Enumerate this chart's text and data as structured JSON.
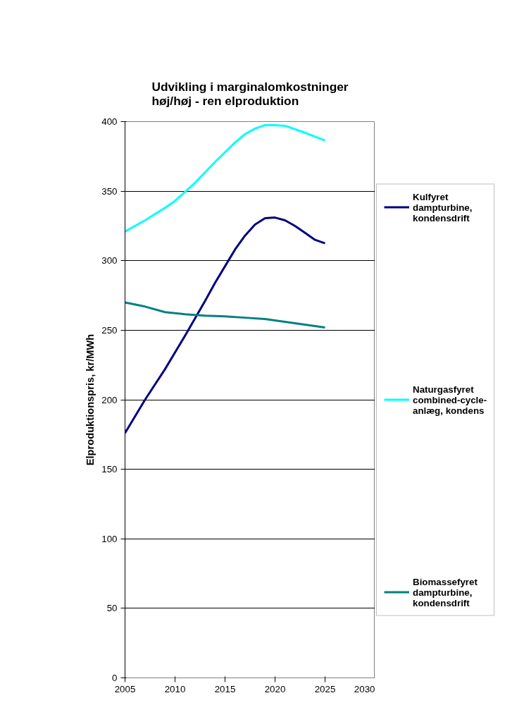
{
  "chart_data": {
    "type": "line",
    "title": "Udvikling i marginalomkostninger\nhøj/høj - ren elproduktion",
    "ylabel": "Elproduktionspris, kr/MWh",
    "xlim": [
      2005,
      2030
    ],
    "xticks": [
      2005,
      2010,
      2015,
      2020,
      2025,
      2030
    ],
    "ylim": [
      0,
      400
    ],
    "yticks": [
      0,
      50,
      100,
      150,
      200,
      250,
      300,
      350,
      400
    ],
    "grid": "y",
    "legend": "right",
    "marker": "none",
    "line_style": "solid",
    "series": [
      {
        "name": "Kulfyret\ndampturbine,\nkondensdrift",
        "color": "#000080",
        "x": [
          2005,
          2007,
          2009,
          2011,
          2013,
          2014,
          2015,
          2016,
          2017,
          2018,
          2019,
          2020,
          2021,
          2022,
          2023,
          2024,
          2025
        ],
        "values": [
          176,
          200,
          222,
          246,
          271,
          284,
          296,
          308,
          318,
          326,
          330.5,
          331,
          329,
          325,
          320,
          315,
          312.5
        ]
      },
      {
        "name": "Naturgasfyret\ncombined-cycle-\nanlæg, kondens",
        "color": "#00ffff",
        "x": [
          2005,
          2007,
          2009,
          2010,
          2012,
          2014,
          2016,
          2017,
          2018,
          2019,
          2020,
          2021,
          2023,
          2025
        ],
        "values": [
          321,
          329,
          338,
          343,
          356,
          371,
          385,
          391,
          395,
          397.5,
          397.5,
          397,
          392,
          386.5
        ]
      },
      {
        "name": "Biomassefyret\ndampturbine,\nkondensdrift",
        "color": "#008080",
        "x": [
          2005,
          2007,
          2009,
          2011,
          2013,
          2015,
          2017,
          2019,
          2021,
          2023,
          2025
        ],
        "values": [
          270,
          267,
          263,
          261.5,
          260.5,
          260,
          259,
          258,
          256,
          254,
          252
        ]
      }
    ]
  }
}
